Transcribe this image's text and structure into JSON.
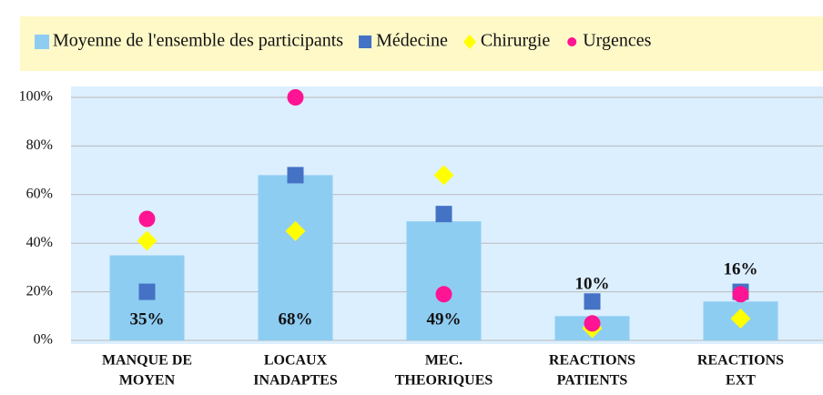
{
  "chart_data": {
    "type": "bar",
    "categories": [
      [
        "MANQUE DE",
        "MOYEN"
      ],
      [
        "LOCAUX",
        "INADAPTES"
      ],
      [
        "MEC.",
        "THEORIQUES"
      ],
      [
        "REACTIONS",
        "PATIENTS"
      ],
      [
        "REACTIONS",
        "EXT"
      ]
    ],
    "bar_series": {
      "name": "Moyenne de l'ensemble des participants",
      "color": "#8ecdf2",
      "values": [
        35,
        68,
        49,
        10,
        16
      ],
      "value_labels": [
        "35%",
        "68%",
        "49%",
        "10%",
        "16%"
      ]
    },
    "series": [
      {
        "name": "Médecine",
        "color": "#4472c4",
        "marker": "square",
        "values": [
          20,
          68,
          52,
          16,
          20
        ]
      },
      {
        "name": "Chirurgie",
        "color": "#ffff00",
        "marker": "diamond",
        "values": [
          41,
          45,
          68,
          5,
          9
        ]
      },
      {
        "name": "Urgences",
        "color": "#ff1493",
        "marker": "circle",
        "values": [
          50,
          100,
          19,
          7,
          19
        ]
      }
    ],
    "ylim": [
      0,
      100
    ],
    "yticks": [
      {
        "value": 0,
        "label": "0%"
      },
      {
        "value": 20,
        "label": "20%"
      },
      {
        "value": 40,
        "label": "40%"
      },
      {
        "value": 60,
        "label": "60%"
      },
      {
        "value": 80,
        "label": "80%"
      },
      {
        "value": 100,
        "label": "100%"
      }
    ],
    "grid": true
  }
}
